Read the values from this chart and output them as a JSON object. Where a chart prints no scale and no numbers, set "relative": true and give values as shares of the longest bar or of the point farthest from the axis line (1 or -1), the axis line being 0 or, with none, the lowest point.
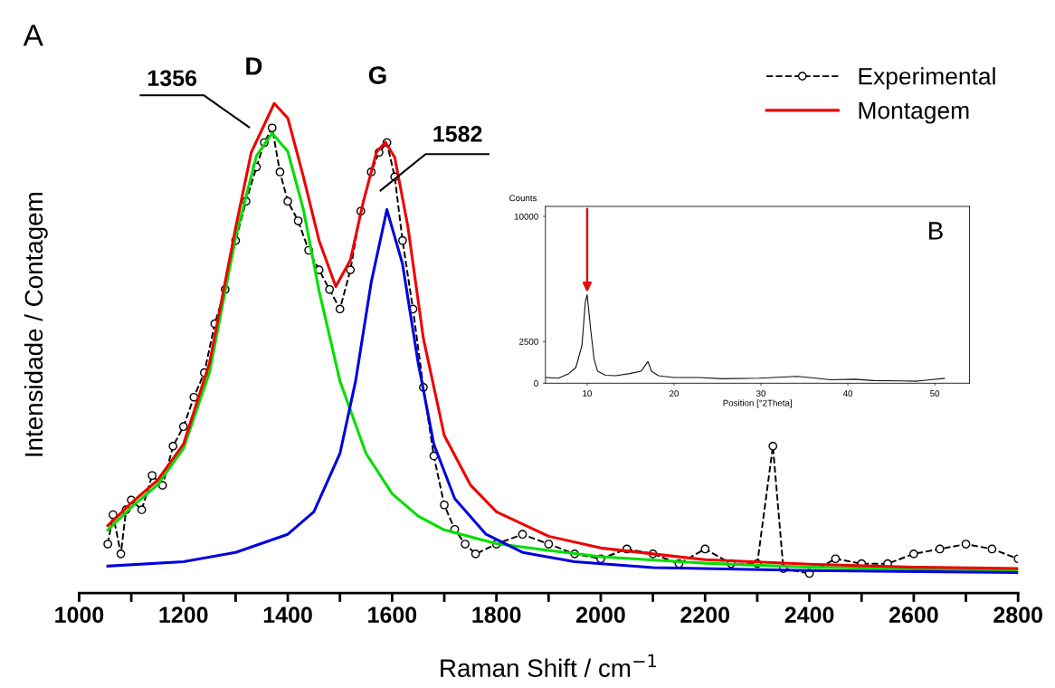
{
  "chart_data": [
    {
      "type": "line",
      "relative": true,
      "xlabel": "Raman Shift / cm$^{−1}$",
      "ylabel": "Intensidade / Contagem",
      "xlim": [
        1000,
        2800
      ],
      "xticks": [
        1000,
        {
          "value": 1100,
          "label": null
        },
        1200,
        {
          "value": 1300,
          "label": null
        },
        1400,
        {
          "value": 1500,
          "label": null
        },
        1600,
        {
          "value": 1700,
          "label": null
        },
        1800,
        {
          "value": 1900,
          "label": null
        },
        2000,
        {
          "value": 2100,
          "label": null
        },
        2200,
        {
          "value": 2300,
          "label": null
        },
        2400,
        {
          "value": 2500,
          "label": null
        },
        2600,
        {
          "value": 2700,
          "label": null
        },
        2800
      ],
      "legend": "top right",
      "grid": false,
      "series": [
        {
          "name": "Experimental",
          "color": "#000000",
          "marker": "circle",
          "line_style": "dashed",
          "x": [
            1055,
            1065,
            1080,
            1090,
            1100,
            1120,
            1140,
            1160,
            1180,
            1200,
            1220,
            1240,
            1260,
            1280,
            1300,
            1320,
            1340,
            1355,
            1370,
            1385,
            1400,
            1420,
            1440,
            1460,
            1480,
            1500,
            1520,
            1540,
            1560,
            1575,
            1590,
            1605,
            1620,
            1640,
            1660,
            1680,
            1700,
            1720,
            1740,
            1760,
            1800,
            1850,
            1900,
            1950,
            2000,
            2050,
            2100,
            2150,
            2200,
            2250,
            2300,
            2330,
            2350,
            2400,
            2450,
            2500,
            2550,
            2600,
            2650,
            2700,
            2750,
            2800
          ],
          "values": [
            0.1,
            0.16,
            0.08,
            0.17,
            0.19,
            0.17,
            0.24,
            0.22,
            0.3,
            0.34,
            0.4,
            0.45,
            0.55,
            0.62,
            0.72,
            0.8,
            0.87,
            0.92,
            0.95,
            0.86,
            0.8,
            0.76,
            0.7,
            0.66,
            0.62,
            0.58,
            0.66,
            0.78,
            0.86,
            0.9,
            0.92,
            0.85,
            0.72,
            0.58,
            0.42,
            0.28,
            0.18,
            0.13,
            0.1,
            0.08,
            0.1,
            0.12,
            0.1,
            0.08,
            0.07,
            0.09,
            0.08,
            0.06,
            0.09,
            0.06,
            0.06,
            0.3,
            0.05,
            0.04,
            0.07,
            0.06,
            0.06,
            0.08,
            0.09,
            0.1,
            0.09,
            0.07
          ]
        },
        {
          "color": "#00dd00",
          "x": [
            1055,
            1100,
            1150,
            1200,
            1250,
            1300,
            1340,
            1370,
            1400,
            1430,
            1460,
            1500,
            1550,
            1600,
            1650,
            1700,
            1800,
            1900,
            2000,
            2200,
            2400,
            2800
          ],
          "values": [
            0.129,
            0.175,
            0.221,
            0.295,
            0.451,
            0.727,
            0.893,
            0.939,
            0.902,
            0.783,
            0.617,
            0.433,
            0.285,
            0.203,
            0.157,
            0.129,
            0.101,
            0.087,
            0.074,
            0.061,
            0.053,
            0.046
          ]
        },
        {
          "color": "#0000dd",
          "x": [
            1055,
            1200,
            1300,
            1400,
            1450,
            1500,
            1530,
            1560,
            1590,
            1620,
            1650,
            1680,
            1720,
            1780,
            1850,
            1950,
            2100,
            2400,
            2800
          ],
          "values": [
            0.055,
            0.064,
            0.083,
            0.12,
            0.166,
            0.285,
            0.433,
            0.635,
            0.783,
            0.672,
            0.47,
            0.304,
            0.193,
            0.12,
            0.083,
            0.064,
            0.052,
            0.046,
            0.042
          ]
        },
        {
          "name": "Montagem",
          "color": "#ee0000",
          "x": [
            1055,
            1100,
            1150,
            1200,
            1250,
            1300,
            1330,
            1374,
            1400,
            1430,
            1460,
            1492,
            1520,
            1545,
            1570,
            1587,
            1605,
            1630,
            1660,
            1700,
            1750,
            1800,
            1900,
            2000,
            2200,
            2400,
            2600,
            2800
          ],
          "values": [
            0.138,
            0.184,
            0.23,
            0.304,
            0.47,
            0.746,
            0.9,
            1.0,
            0.97,
            0.85,
            0.72,
            0.626,
            0.68,
            0.8,
            0.9,
            0.921,
            0.89,
            0.75,
            0.52,
            0.322,
            0.221,
            0.166,
            0.116,
            0.092,
            0.068,
            0.059,
            0.053,
            0.05
          ]
        }
      ],
      "annotations": [
        "A",
        "D",
        "1356",
        "G",
        "1582"
      ]
    },
    {
      "type": "line",
      "xlabel": "Position [°2Theta]",
      "ylabel": "Counts",
      "xlim": [
        5.2,
        54
      ],
      "xticks": [
        10,
        20,
        30,
        40,
        50
      ],
      "ylim": [
        0,
        10600
      ],
      "yticks": [
        0,
        2500,
        10000
      ],
      "grid": false,
      "series": [
        {
          "color": "#111111",
          "x": [
            5.27,
            6.7,
            7.9,
            8.7,
            9.4,
            9.8,
            10.0,
            10.4,
            10.8,
            11.2,
            12.1,
            13.3,
            14.9,
            16.2,
            17.0,
            17.4,
            18.2,
            19.9,
            22.8,
            25.6,
            29.8,
            34.2,
            36.3,
            38.0,
            40.8,
            42.9,
            46.2,
            47.9,
            49.5,
            51.1
          ],
          "values": [
            340,
            300,
            580,
            940,
            2260,
            4900,
            5300,
            3230,
            1440,
            720,
            480,
            450,
            580,
            720,
            1300,
            720,
            450,
            340,
            340,
            270,
            300,
            410,
            300,
            210,
            240,
            160,
            140,
            120,
            210,
            290
          ]
        }
      ],
      "annotations": [
        "B"
      ]
    }
  ]
}
